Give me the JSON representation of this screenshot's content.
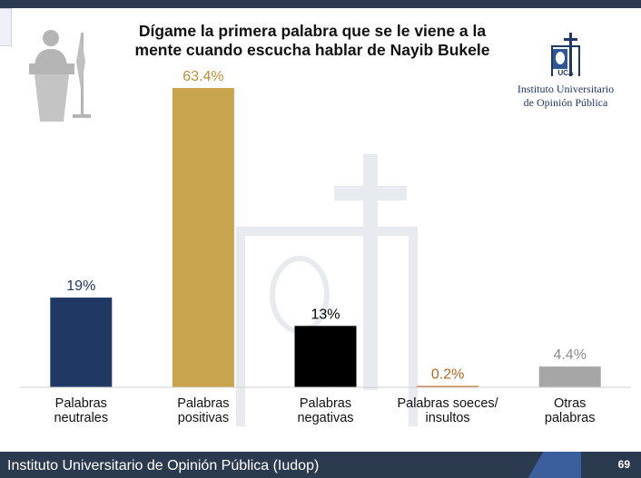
{
  "title_line1": "Dígame la primera palabra que se le viene a la",
  "title_line2": "mente cuando escucha hablar de Nayib Bukele",
  "logo": {
    "line1": "Instituto Universitario",
    "line2": "de Opinión Pública",
    "mark_text": "UCA"
  },
  "footer": {
    "text": "Instituto Universitario de Opinión Pública (Iudop)",
    "page": "69"
  },
  "colors": {
    "neutral": "#1f3864",
    "positive": "#c9a44e",
    "negative": "#000000",
    "insult": "#b8651e",
    "other": "#a6a6a6",
    "footer": "#2b3a4f"
  },
  "chart_data": {
    "type": "bar",
    "categories": [
      [
        "Palabras",
        "neutrales"
      ],
      [
        "Palabras",
        "positivas"
      ],
      [
        "Palabras",
        "negativas"
      ],
      [
        "Palabras soeces/",
        "insultos"
      ],
      [
        "Otras",
        "palabras"
      ]
    ],
    "values": [
      19,
      63.4,
      13,
      0.2,
      4.4
    ],
    "data_labels": [
      "19%",
      "63.4%",
      "13%",
      "0.2%",
      "4.4%"
    ],
    "bar_colors": [
      "#1f3864",
      "#c9a44e",
      "#000000",
      "#b8651e",
      "#a6a6a6"
    ],
    "label_colors": [
      "#1f3864",
      "#b8913a",
      "#000000",
      "#b8651e",
      "#8c8c8c"
    ],
    "ylim": [
      0,
      63.4
    ],
    "grid": false,
    "legend": "none"
  }
}
